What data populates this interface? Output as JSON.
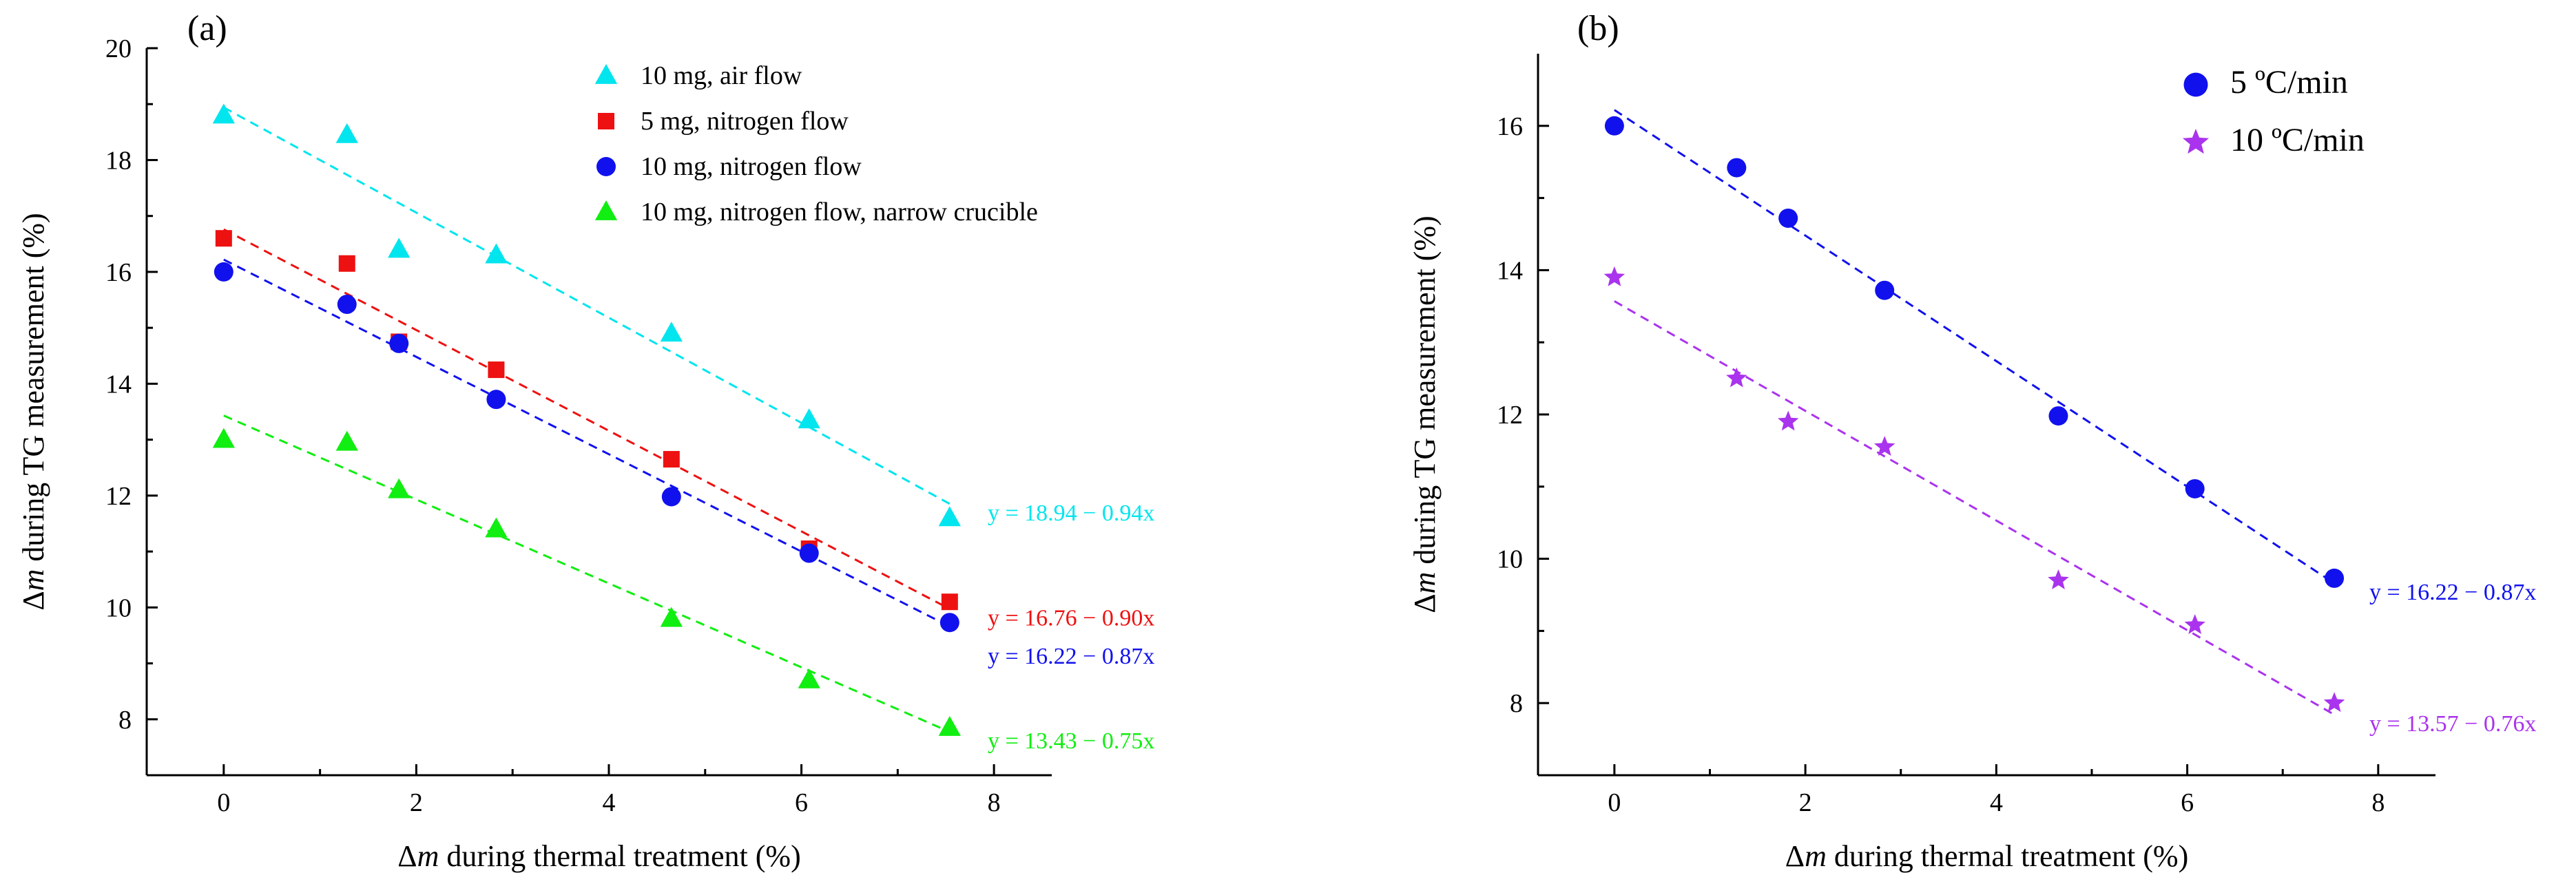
{
  "chart_data": [
    {
      "type": "scatter",
      "panel_label": "(a)",
      "xlabel_pre": "Δ",
      "xlabel_var": "m",
      "xlabel_post": " during thermal treatment (%)",
      "ylabel_pre": "Δ",
      "ylabel_var": "m",
      "ylabel_post": " during TG measurement (%)",
      "xlim": [
        -0.8,
        8.6
      ],
      "ylim": [
        7,
        20
      ],
      "xticks": [
        0,
        2,
        4,
        6,
        8
      ],
      "yticks": [
        8,
        10,
        12,
        14,
        16,
        18,
        20
      ],
      "legend_position": "top-right",
      "series": [
        {
          "name": "10 mg, air flow",
          "marker": "triangle",
          "color": "#00e5ee",
          "x": [
            0,
            1.28,
            1.82,
            2.83,
            4.65,
            6.08,
            7.54
          ],
          "y": [
            18.8,
            18.45,
            16.4,
            16.3,
            14.9,
            13.35,
            11.6
          ],
          "fit": {
            "intercept": 18.94,
            "slope": -0.94,
            "label": "y = 18.94 − 0.94x"
          }
        },
        {
          "name": "5 mg, nitrogen flow",
          "marker": "square",
          "color": "#ee1111",
          "x": [
            0,
            1.28,
            1.82,
            2.83,
            4.65,
            6.08,
            7.54
          ],
          "y": [
            16.6,
            16.15,
            14.75,
            14.25,
            12.65,
            11.05,
            10.1
          ],
          "fit": {
            "intercept": 16.76,
            "slope": -0.9,
            "label": "y = 16.76 − 0.90x"
          }
        },
        {
          "name": "10 mg, nitrogen flow",
          "marker": "circle",
          "color": "#1111ee",
          "x": [
            0,
            1.28,
            1.82,
            2.83,
            4.65,
            6.08,
            7.54
          ],
          "y": [
            16.0,
            15.42,
            14.72,
            13.72,
            11.98,
            10.97,
            9.73
          ],
          "fit": {
            "intercept": 16.22,
            "slope": -0.87,
            "label": "y = 16.22 − 0.87x"
          }
        },
        {
          "name": "10 mg, nitrogen flow, narrow crucible",
          "marker": "triangle",
          "color": "#11ee11",
          "x": [
            0,
            1.28,
            1.82,
            2.83,
            4.65,
            6.08,
            7.54
          ],
          "y": [
            13.0,
            12.95,
            12.1,
            11.4,
            9.8,
            8.7,
            7.85
          ],
          "fit": {
            "intercept": 13.43,
            "slope": -0.75,
            "label": "y = 13.43 − 0.75x"
          }
        }
      ]
    },
    {
      "type": "scatter",
      "panel_label": "(b)",
      "xlabel_pre": "Δ",
      "xlabel_var": "m",
      "xlabel_post": " during thermal treatment (%)",
      "ylabel_pre": "Δ",
      "ylabel_var": "m",
      "ylabel_post": " during TG measurement (%)",
      "xlim": [
        -0.8,
        8.6
      ],
      "ylim": [
        7,
        17
      ],
      "xticks": [
        0,
        2,
        4,
        6,
        8
      ],
      "yticks": [
        8,
        10,
        12,
        14,
        16
      ],
      "legend_position": "top-right",
      "series": [
        {
          "name": "5 ºC/min",
          "marker": "circle",
          "color": "#1111ee",
          "x": [
            0,
            1.28,
            1.82,
            2.83,
            4.65,
            6.08,
            7.54
          ],
          "y": [
            16.0,
            15.42,
            14.72,
            13.72,
            11.98,
            10.97,
            9.73
          ],
          "fit": {
            "intercept": 16.22,
            "slope": -0.87,
            "label": "y = 16.22 − 0.87x"
          }
        },
        {
          "name": "10 ºC/min",
          "marker": "star",
          "color": "#aa33ee",
          "x": [
            0,
            1.28,
            1.82,
            2.83,
            4.65,
            6.08,
            7.54
          ],
          "y": [
            13.9,
            12.5,
            11.9,
            11.55,
            9.7,
            9.08,
            8.0
          ],
          "fit": {
            "intercept": 13.57,
            "slope": -0.76,
            "label": "y = 13.57 − 0.76x"
          }
        }
      ]
    }
  ]
}
